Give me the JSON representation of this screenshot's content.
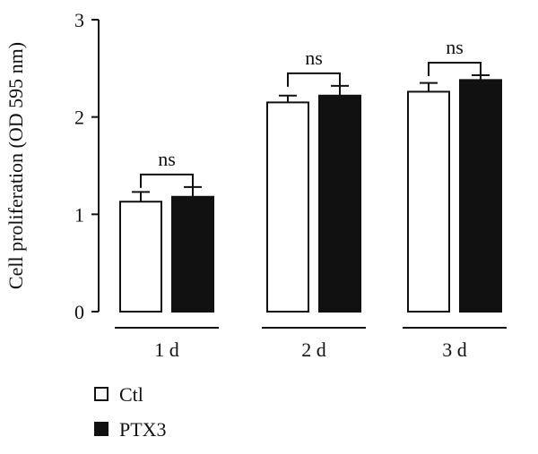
{
  "chart_data": {
    "type": "bar",
    "ylabel": "Cell proliferation (OD 595 nm)",
    "xlabel": "",
    "ylim": [
      0,
      3
    ],
    "yticks": [
      0,
      1,
      2,
      3
    ],
    "categories": [
      "1 d",
      "2 d",
      "3 d"
    ],
    "series": [
      {
        "name": "Ctl",
        "fill": "#ffffff",
        "values": [
          1.13,
          2.15,
          2.26
        ],
        "errors": [
          0.1,
          0.07,
          0.09
        ]
      },
      {
        "name": "PTX3",
        "fill": "#111111",
        "values": [
          1.18,
          2.22,
          2.38
        ],
        "errors": [
          0.1,
          0.1,
          0.05
        ]
      }
    ],
    "annotations": [
      "ns",
      "ns",
      "ns"
    ],
    "legend_position": "bottom-left"
  }
}
